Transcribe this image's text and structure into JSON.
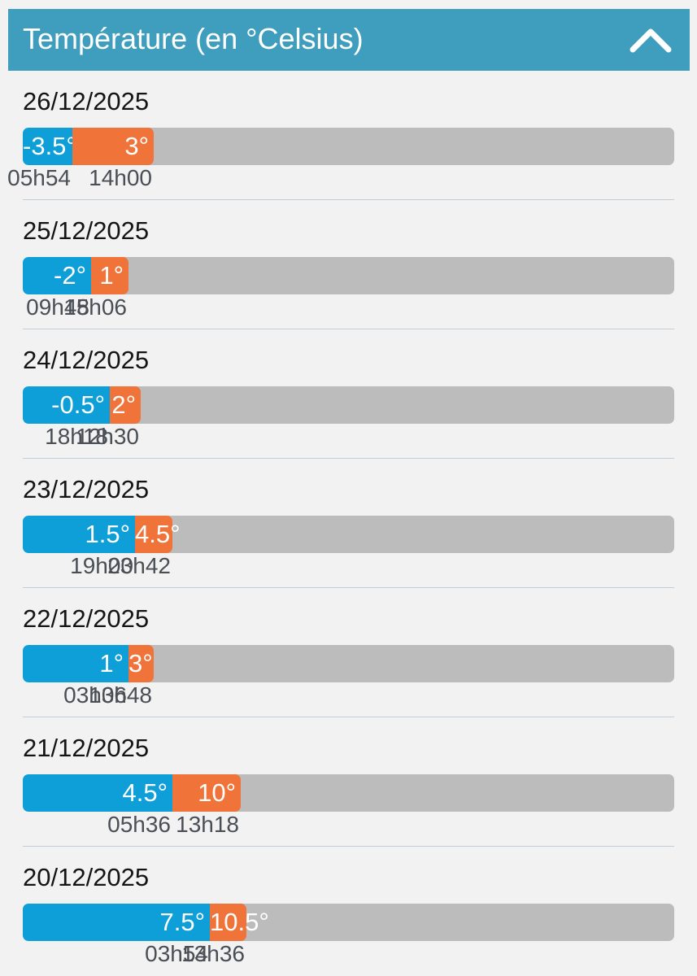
{
  "header": {
    "title": "Température (en °Celsius)",
    "collapse_icon": "chevron-up-icon"
  },
  "colors": {
    "header": "#3f9dbd",
    "min_bar": "#0f9fd8",
    "max_bar": "#f0743a",
    "track": "#bcbcbc"
  },
  "days": [
    {
      "date": "26/12/2025",
      "min": {
        "label": "-3.5°",
        "value": -3.5,
        "time": "05h54"
      },
      "max": {
        "label": "3°",
        "value": 3,
        "time": "14h00"
      }
    },
    {
      "date": "25/12/2025",
      "min": {
        "label": "-2°",
        "value": -2,
        "time": "09h48"
      },
      "max": {
        "label": "1°",
        "value": 1,
        "time": "15h06"
      }
    },
    {
      "date": "24/12/2025",
      "min": {
        "label": "-0.5°",
        "value": -0.5,
        "time": "18h18"
      },
      "max": {
        "label": "2°",
        "value": 2,
        "time": "12h30"
      }
    },
    {
      "date": "23/12/2025",
      "min": {
        "label": "1.5°",
        "value": 1.5,
        "time": "19h00"
      },
      "max": {
        "label": "4.5°",
        "value": 4.5,
        "time": "23h42"
      }
    },
    {
      "date": "22/12/2025",
      "min": {
        "label": "1°",
        "value": 1,
        "time": "03h06"
      },
      "max": {
        "label": "3°",
        "value": 3,
        "time": "13h48"
      }
    },
    {
      "date": "21/12/2025",
      "min": {
        "label": "4.5°",
        "value": 4.5,
        "time": "05h36"
      },
      "max": {
        "label": "10°",
        "value": 10,
        "time": "13h18"
      }
    },
    {
      "date": "20/12/2025",
      "min": {
        "label": "7.5°",
        "value": 7.5,
        "time": "03h54"
      },
      "max": {
        "label": "10.5°",
        "value": 10.5,
        "time": "13h36"
      }
    }
  ]
}
